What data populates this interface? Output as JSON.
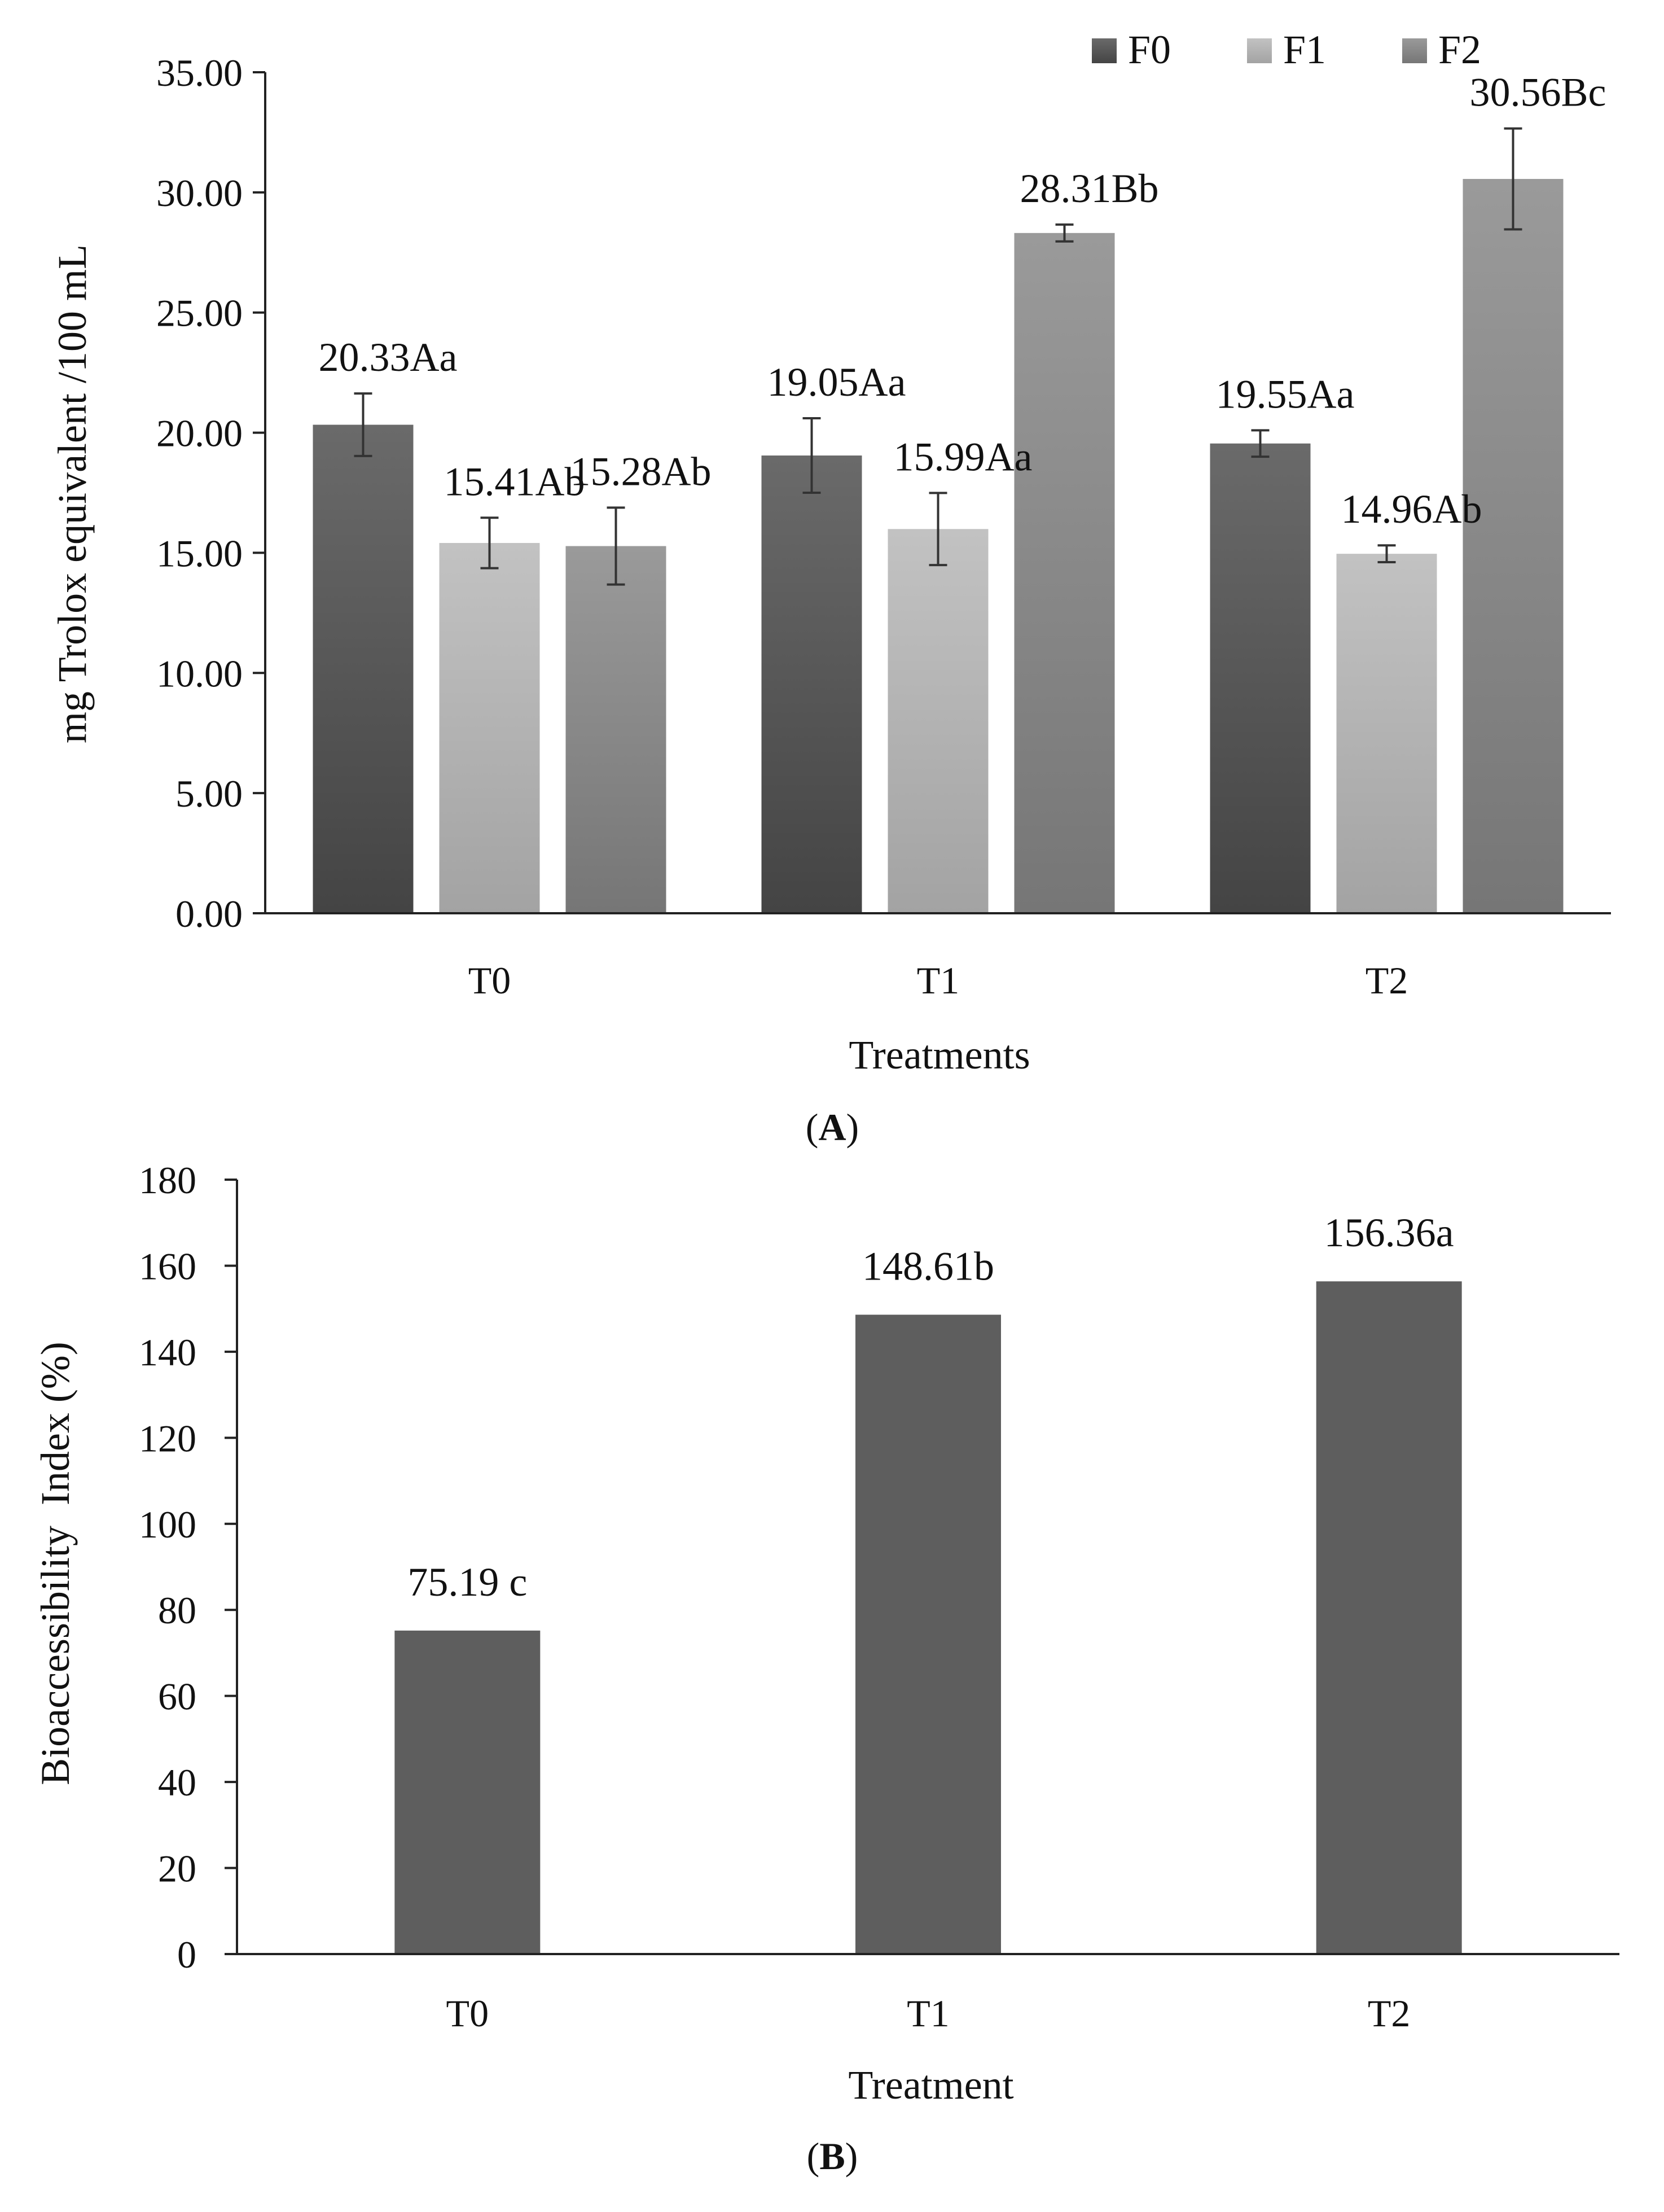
{
  "chart_data": [
    {
      "type": "bar",
      "panel_label": "A",
      "categories": [
        "T0",
        "T1",
        "T2"
      ],
      "series": [
        {
          "name": "F0",
          "color": "#555555",
          "values": [
            20.33,
            19.05,
            19.55
          ],
          "errors": [
            1.3,
            1.55,
            0.55
          ],
          "labels": [
            "20.33Aa",
            "19.05Aa",
            "19.55Aa"
          ]
        },
        {
          "name": "F1",
          "color": "#b5b5b5",
          "values": [
            15.41,
            15.99,
            14.96
          ],
          "errors": [
            1.05,
            1.5,
            0.35
          ],
          "labels": [
            "15.41Ab",
            "15.99Aa",
            "14.96Ab"
          ]
        },
        {
          "name": "F2",
          "color": "#8c8c8c",
          "values": [
            15.28,
            28.31,
            30.56
          ],
          "errors": [
            1.6,
            0.35,
            2.1
          ],
          "labels": [
            "15.28Ab",
            "28.31Bb",
            "30.56Bc"
          ]
        }
      ],
      "xlabel": "Treatments",
      "ylabel": "mg Trolox equivalent /100 mL",
      "ylim": [
        0,
        35
      ],
      "yticks": [
        "0.00",
        "5.00",
        "10.00",
        "15.00",
        "20.00",
        "25.00",
        "30.00",
        "35.00"
      ],
      "legend_position": "top-right",
      "grid": false
    },
    {
      "type": "bar",
      "panel_label": "B",
      "categories": [
        "T0",
        "T1",
        "T2"
      ],
      "values": [
        75.19,
        148.61,
        156.36
      ],
      "labels": [
        "75.19 c",
        "148.61b",
        "156.36a"
      ],
      "color": "#5e5e5e",
      "xlabel": "Treatment",
      "ylabel": "Bioaccessibility  Index (%)",
      "ylim": [
        0,
        180
      ],
      "yticks": [
        "0",
        "20",
        "40",
        "60",
        "80",
        "100",
        "120",
        "140",
        "160",
        "180"
      ],
      "grid": false
    }
  ]
}
